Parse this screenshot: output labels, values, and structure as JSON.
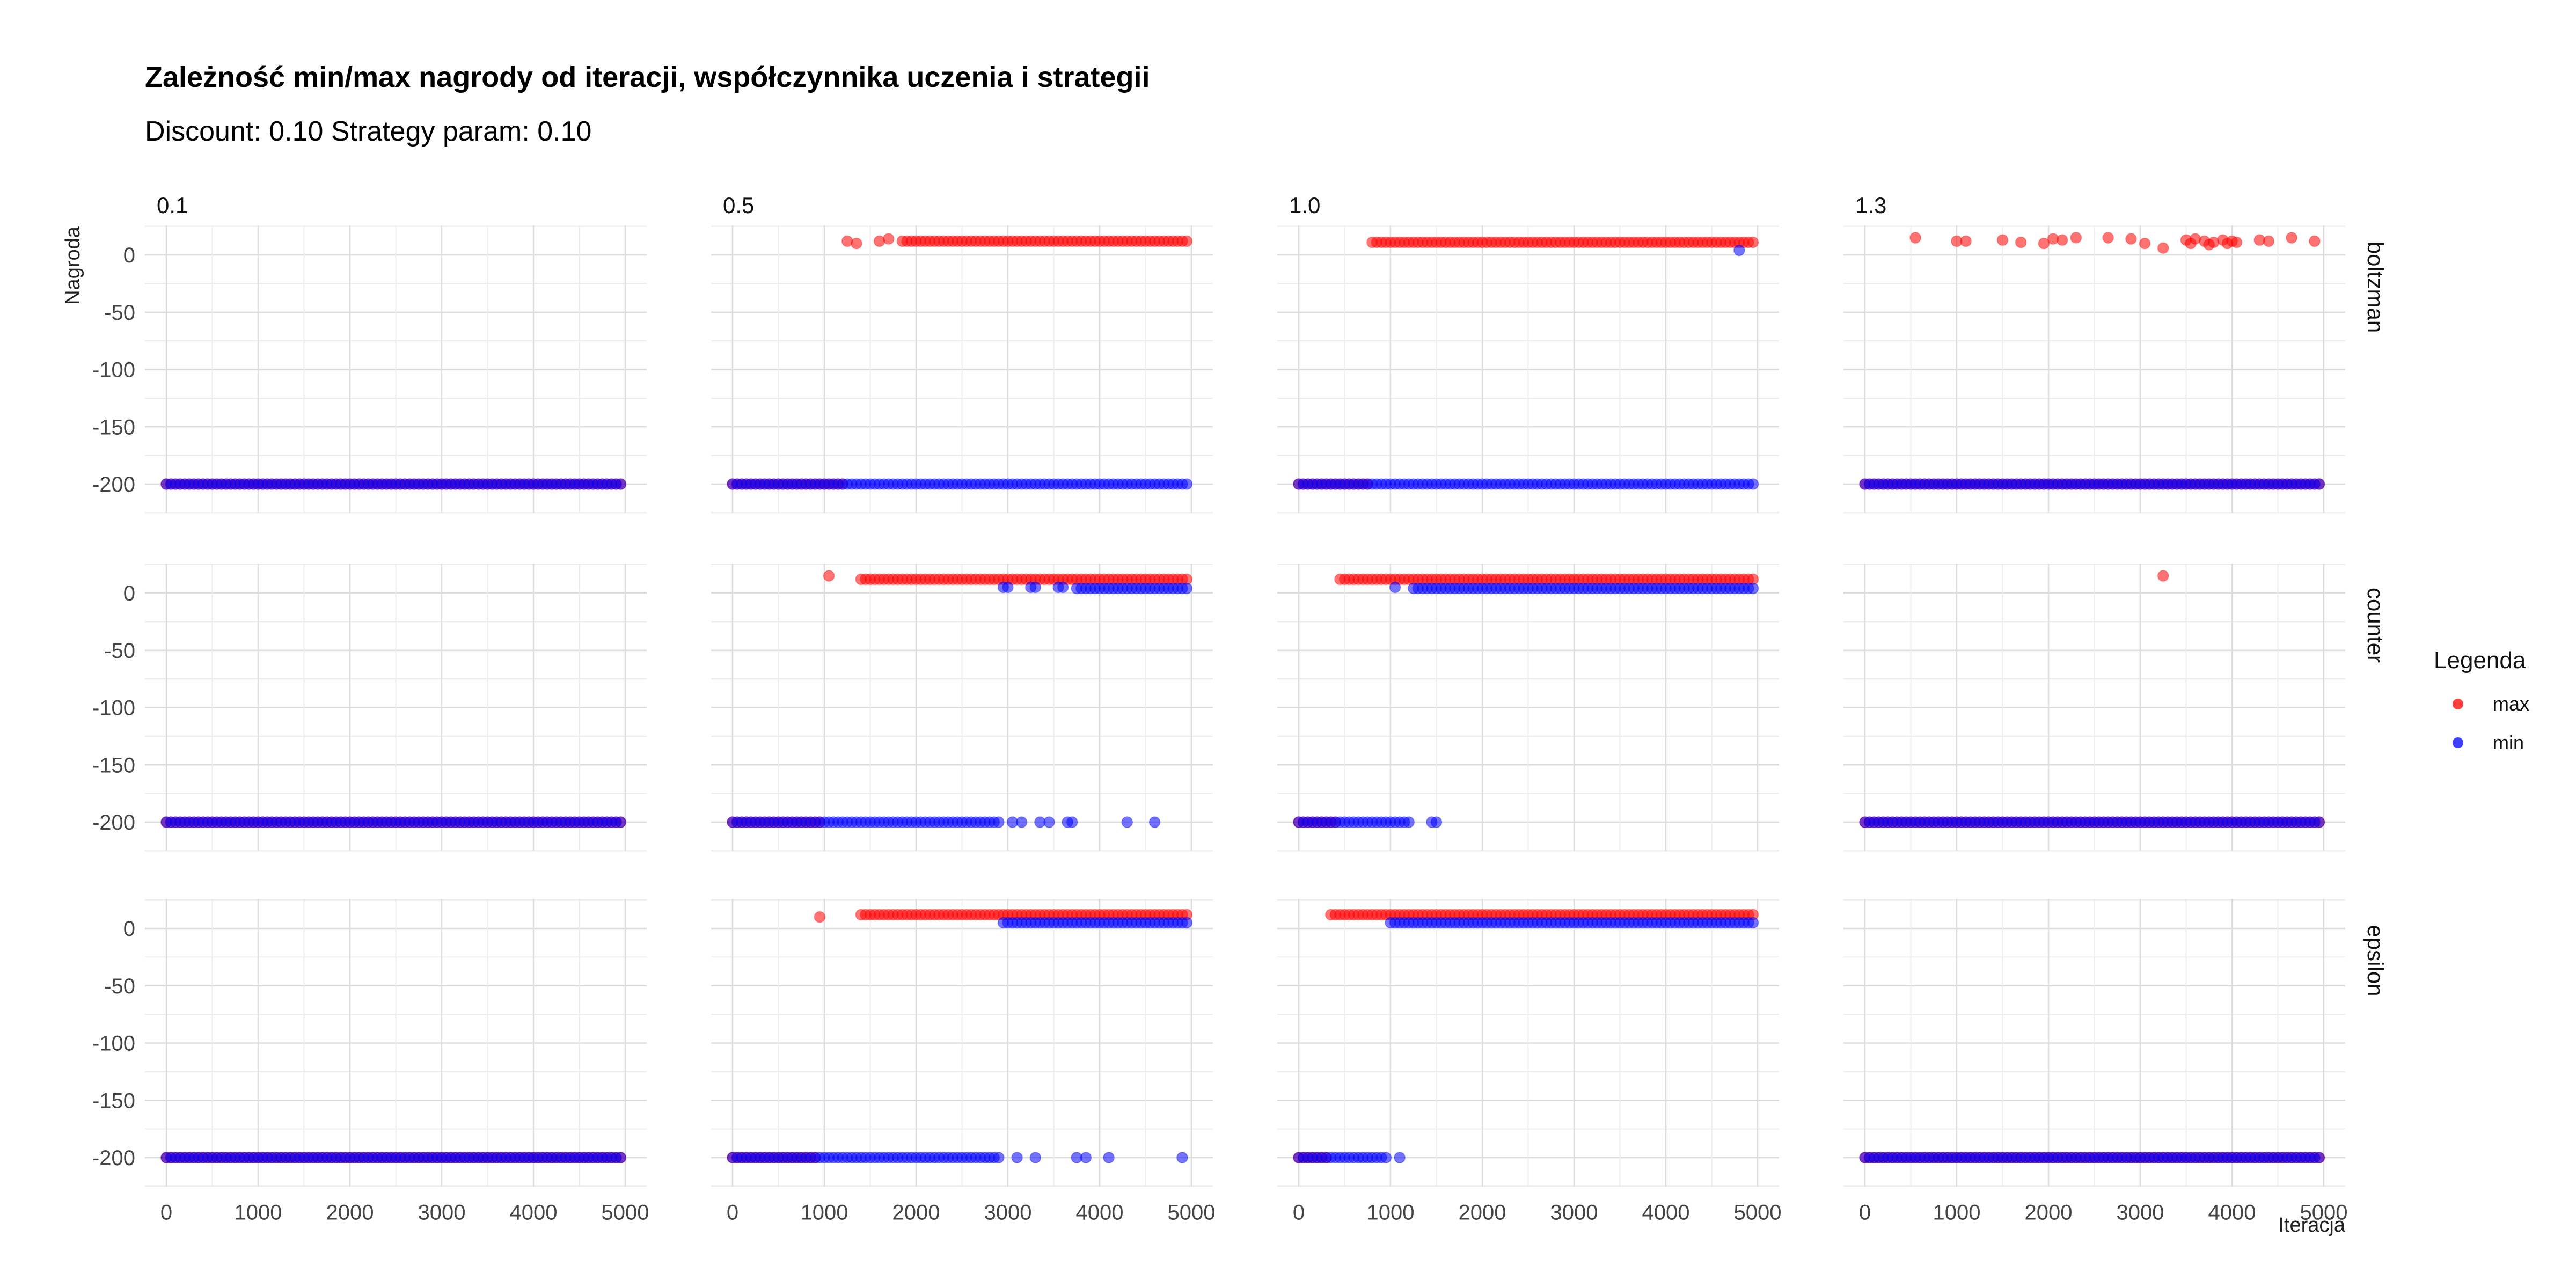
{
  "title": "Zależność min/max nagrody od iteracji, współczynnika uczenia i strategii",
  "subtitle": "Discount: 0.10 Strategy param: 0.10",
  "legend": {
    "title": "Legenda",
    "items": [
      {
        "label": "max",
        "color": "#ff0000"
      },
      {
        "label": "min",
        "color": "#0000ff"
      }
    ]
  },
  "chart_data": {
    "type": "scatter",
    "xlabel": "Iteracja",
    "ylabel": "Nagroda",
    "xlim": [
      0,
      5000
    ],
    "ylim": [
      -200,
      20
    ],
    "x_ticks": [
      0,
      1000,
      2000,
      3000,
      4000,
      5000
    ],
    "y_ticks": [
      0,
      -50,
      -100,
      -150,
      -200
    ],
    "grid": true,
    "legend_position": "right",
    "columns": [
      "0.1",
      "0.5",
      "1.0",
      "1.3"
    ],
    "rows": [
      "boltzman",
      "counter",
      "epsilon"
    ],
    "panels": [
      {
        "row": "boltzman",
        "col": "0.1",
        "max": [
          {
            "x_from": 0,
            "x_to": 4950,
            "step": 50,
            "y": -200
          }
        ],
        "min": [
          {
            "x_from": 0,
            "x_to": 4950,
            "step": 50,
            "y": -200
          }
        ]
      },
      {
        "row": "boltzman",
        "col": "0.5",
        "max": [
          {
            "x_from": 0,
            "x_to": 1200,
            "step": 50,
            "y": -200
          },
          {
            "x": 1250,
            "y": 12
          },
          {
            "x": 1350,
            "y": 10
          },
          {
            "x": 1600,
            "y": 12
          },
          {
            "x": 1700,
            "y": 14
          },
          {
            "x_from": 1850,
            "x_to": 4950,
            "step": 50,
            "y": 12
          }
        ],
        "min": [
          {
            "x_from": 0,
            "x_to": 4950,
            "step": 50,
            "y": -200
          }
        ]
      },
      {
        "row": "boltzman",
        "col": "1.0",
        "max": [
          {
            "x_from": 0,
            "x_to": 750,
            "step": 50,
            "y": -200
          },
          {
            "x_from": 800,
            "x_to": 4950,
            "step": 50,
            "y": 11
          }
        ],
        "min": [
          {
            "x_from": 0,
            "x_to": 4950,
            "step": 50,
            "y": -200
          },
          {
            "x": 4800,
            "y": 4
          }
        ]
      },
      {
        "row": "boltzman",
        "col": "1.3",
        "max": [
          {
            "x_from": 0,
            "x_to": 4950,
            "step": 50,
            "y": -200
          },
          {
            "x": 550,
            "y": 15
          },
          {
            "x": 1000,
            "y": 12
          },
          {
            "x": 1100,
            "y": 12
          },
          {
            "x": 1500,
            "y": 13
          },
          {
            "x": 1700,
            "y": 11
          },
          {
            "x": 1950,
            "y": 10
          },
          {
            "x": 2050,
            "y": 14
          },
          {
            "x": 2150,
            "y": 13
          },
          {
            "x": 2300,
            "y": 15
          },
          {
            "x": 2650,
            "y": 15
          },
          {
            "x": 2900,
            "y": 14
          },
          {
            "x": 3050,
            "y": 10
          },
          {
            "x": 3250,
            "y": 6
          },
          {
            "x": 3500,
            "y": 13
          },
          {
            "x": 3550,
            "y": 10
          },
          {
            "x": 3600,
            "y": 14
          },
          {
            "x": 3700,
            "y": 12
          },
          {
            "x": 3750,
            "y": 9
          },
          {
            "x": 3800,
            "y": 11
          },
          {
            "x": 3900,
            "y": 13
          },
          {
            "x": 3950,
            "y": 10
          },
          {
            "x": 4000,
            "y": 12
          },
          {
            "x": 4050,
            "y": 11
          },
          {
            "x": 4300,
            "y": 13
          },
          {
            "x": 4400,
            "y": 12
          },
          {
            "x": 4650,
            "y": 15
          },
          {
            "x": 4900,
            "y": 12
          }
        ],
        "min": [
          {
            "x_from": 0,
            "x_to": 4950,
            "step": 50,
            "y": -200
          }
        ]
      },
      {
        "row": "counter",
        "col": "0.1",
        "max": [
          {
            "x_from": 0,
            "x_to": 4950,
            "step": 50,
            "y": -200
          }
        ],
        "min": [
          {
            "x_from": 0,
            "x_to": 4950,
            "step": 50,
            "y": -200
          }
        ]
      },
      {
        "row": "counter",
        "col": "0.5",
        "max": [
          {
            "x_from": 0,
            "x_to": 950,
            "step": 50,
            "y": -200
          },
          {
            "x": 1050,
            "y": 15
          },
          {
            "x_from": 1400,
            "x_to": 4950,
            "step": 50,
            "y": 12
          }
        ],
        "min": [
          {
            "x_from": 0,
            "x_to": 2900,
            "step": 50,
            "y": -200
          },
          {
            "x": 3050,
            "y": -200
          },
          {
            "x": 3150,
            "y": -200
          },
          {
            "x": 3350,
            "y": -200
          },
          {
            "x": 3450,
            "y": -200
          },
          {
            "x": 3650,
            "y": -200
          },
          {
            "x": 3700,
            "y": -200
          },
          {
            "x": 4300,
            "y": -200
          },
          {
            "x": 4600,
            "y": -200
          },
          {
            "x": 2950,
            "y": 5
          },
          {
            "x": 3000,
            "y": 5
          },
          {
            "x": 3250,
            "y": 5
          },
          {
            "x": 3300,
            "y": 5
          },
          {
            "x": 3550,
            "y": 5
          },
          {
            "x": 3600,
            "y": 5
          },
          {
            "x_from": 3750,
            "x_to": 4950,
            "step": 50,
            "y": 4
          }
        ]
      },
      {
        "row": "counter",
        "col": "1.0",
        "max": [
          {
            "x_from": 0,
            "x_to": 400,
            "step": 50,
            "y": -200
          },
          {
            "x_from": 450,
            "x_to": 4950,
            "step": 50,
            "y": 12
          }
        ],
        "min": [
          {
            "x_from": 0,
            "x_to": 1200,
            "step": 50,
            "y": -200
          },
          {
            "x": 1450,
            "y": -200
          },
          {
            "x": 1500,
            "y": -200
          },
          {
            "x": 1050,
            "y": 5
          },
          {
            "x_from": 1250,
            "x_to": 4950,
            "step": 50,
            "y": 4
          }
        ]
      },
      {
        "row": "counter",
        "col": "1.3",
        "max": [
          {
            "x_from": 0,
            "x_to": 4950,
            "step": 50,
            "y": -200
          },
          {
            "x": 3250,
            "y": 15
          }
        ],
        "min": [
          {
            "x_from": 0,
            "x_to": 4950,
            "step": 50,
            "y": -200
          }
        ]
      },
      {
        "row": "epsilon",
        "col": "0.1",
        "max": [
          {
            "x_from": 0,
            "x_to": 4950,
            "step": 50,
            "y": -200
          }
        ],
        "min": [
          {
            "x_from": 0,
            "x_to": 4950,
            "step": 50,
            "y": -200
          }
        ]
      },
      {
        "row": "epsilon",
        "col": "0.5",
        "max": [
          {
            "x_from": 0,
            "x_to": 900,
            "step": 50,
            "y": -200
          },
          {
            "x": 950,
            "y": 10
          },
          {
            "x_from": 1400,
            "x_to": 4950,
            "step": 50,
            "y": 12
          }
        ],
        "min": [
          {
            "x_from": 0,
            "x_to": 2900,
            "step": 50,
            "y": -200
          },
          {
            "x": 3100,
            "y": -200
          },
          {
            "x": 3300,
            "y": -200
          },
          {
            "x": 3750,
            "y": -200
          },
          {
            "x": 3850,
            "y": -200
          },
          {
            "x": 4100,
            "y": -200
          },
          {
            "x": 4900,
            "y": -200
          },
          {
            "x_from": 2950,
            "x_to": 4950,
            "step": 50,
            "y": 5
          }
        ]
      },
      {
        "row": "epsilon",
        "col": "1.0",
        "max": [
          {
            "x_from": 0,
            "x_to": 300,
            "step": 50,
            "y": -200
          },
          {
            "x_from": 350,
            "x_to": 4950,
            "step": 50,
            "y": 12
          }
        ],
        "min": [
          {
            "x_from": 0,
            "x_to": 950,
            "step": 50,
            "y": -200
          },
          {
            "x": 1100,
            "y": -200
          },
          {
            "x_from": 1000,
            "x_to": 4950,
            "step": 50,
            "y": 5
          }
        ]
      },
      {
        "row": "epsilon",
        "col": "1.3",
        "max": [
          {
            "x_from": 0,
            "x_to": 4950,
            "step": 50,
            "y": -200
          }
        ],
        "min": [
          {
            "x_from": 0,
            "x_to": 4950,
            "step": 50,
            "y": -200
          }
        ]
      }
    ]
  }
}
